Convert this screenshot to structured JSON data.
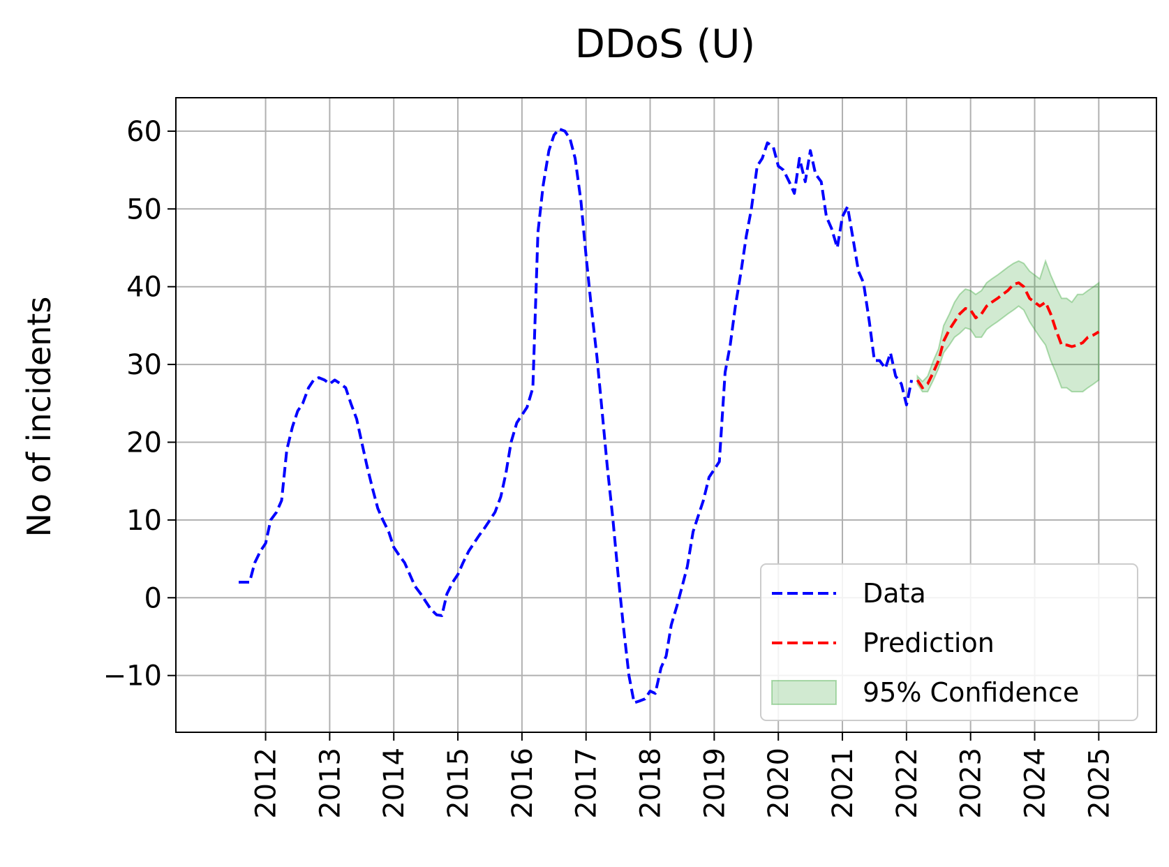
{
  "chart_data": {
    "type": "line",
    "title": "DDoS (U)",
    "xlabel": "",
    "ylabel": "No of incidents",
    "xlim": [
      2010.6,
      2025.9
    ],
    "ylim": [
      -17.3,
      64.3
    ],
    "x_ticks": [
      "2012",
      "2013",
      "2014",
      "2015",
      "2016",
      "2017",
      "2018",
      "2019",
      "2020",
      "2021",
      "2022",
      "2023",
      "2024",
      "2025"
    ],
    "y_ticks": [
      -10,
      0,
      10,
      20,
      30,
      40,
      50,
      60
    ],
    "y_tick_labels": [
      "−10",
      "0",
      "10",
      "20",
      "30",
      "40",
      "50",
      "60"
    ],
    "grid": true,
    "legend": {
      "placement": "lower-right",
      "entries": [
        {
          "label": "Data",
          "style": "dashed",
          "color": "#0000ff"
        },
        {
          "label": "Prediction",
          "style": "dashed",
          "color": "#ff0000"
        },
        {
          "label": "95% Confidence",
          "style": "band",
          "color": "#2ca02c"
        }
      ]
    },
    "series": [
      {
        "name": "Data",
        "color": "#0000ff",
        "style": "dashed",
        "points": [
          [
            2011.58,
            2
          ],
          [
            2011.75,
            2
          ],
          [
            2011.83,
            4.5
          ],
          [
            2011.92,
            6
          ],
          [
            2012.0,
            7
          ],
          [
            2012.08,
            10
          ],
          [
            2012.17,
            11
          ],
          [
            2012.25,
            12.5
          ],
          [
            2012.33,
            19
          ],
          [
            2012.42,
            22
          ],
          [
            2012.5,
            24
          ],
          [
            2012.58,
            25
          ],
          [
            2012.67,
            27
          ],
          [
            2012.75,
            28
          ],
          [
            2012.83,
            28.3
          ],
          [
            2012.92,
            28
          ],
          [
            2013.0,
            27.5
          ],
          [
            2013.08,
            28
          ],
          [
            2013.17,
            27.5
          ],
          [
            2013.25,
            27
          ],
          [
            2013.33,
            25
          ],
          [
            2013.42,
            23
          ],
          [
            2013.5,
            20
          ],
          [
            2013.58,
            17
          ],
          [
            2013.67,
            14
          ],
          [
            2013.75,
            11.5
          ],
          [
            2013.83,
            10
          ],
          [
            2013.92,
            8.5
          ],
          [
            2014.0,
            6.5
          ],
          [
            2014.08,
            5.5
          ],
          [
            2014.17,
            4.5
          ],
          [
            2014.25,
            3
          ],
          [
            2014.33,
            1.5
          ],
          [
            2014.42,
            0.5
          ],
          [
            2014.5,
            -0.5
          ],
          [
            2014.58,
            -1.5
          ],
          [
            2014.67,
            -2.2
          ],
          [
            2014.75,
            -2.3
          ],
          [
            2014.83,
            0.5
          ],
          [
            2014.92,
            2
          ],
          [
            2015.0,
            3
          ],
          [
            2015.08,
            4.5
          ],
          [
            2015.17,
            6
          ],
          [
            2015.25,
            7
          ],
          [
            2015.33,
            8
          ],
          [
            2015.42,
            9
          ],
          [
            2015.5,
            10
          ],
          [
            2015.58,
            11
          ],
          [
            2015.67,
            13
          ],
          [
            2015.75,
            16
          ],
          [
            2015.83,
            20
          ],
          [
            2015.92,
            22.5
          ],
          [
            2016.0,
            23.5
          ],
          [
            2016.08,
            24.5
          ],
          [
            2016.17,
            27
          ],
          [
            2016.25,
            47
          ],
          [
            2016.33,
            53
          ],
          [
            2016.42,
            57.5
          ],
          [
            2016.5,
            59.5
          ],
          [
            2016.58,
            60.3
          ],
          [
            2016.67,
            60
          ],
          [
            2016.75,
            59
          ],
          [
            2016.83,
            56.5
          ],
          [
            2016.92,
            51
          ],
          [
            2017.0,
            44
          ],
          [
            2017.08,
            37.5
          ],
          [
            2017.17,
            31
          ],
          [
            2017.25,
            24
          ],
          [
            2017.33,
            17
          ],
          [
            2017.42,
            10
          ],
          [
            2017.5,
            3
          ],
          [
            2017.58,
            -3.5
          ],
          [
            2017.67,
            -10
          ],
          [
            2017.75,
            -13.5
          ],
          [
            2017.83,
            -13.3
          ],
          [
            2017.92,
            -13
          ],
          [
            2018.0,
            -12
          ],
          [
            2018.08,
            -12.3
          ],
          [
            2018.17,
            -9
          ],
          [
            2018.25,
            -7.5
          ],
          [
            2018.33,
            -3.5
          ],
          [
            2018.42,
            -1
          ],
          [
            2018.5,
            1.5
          ],
          [
            2018.58,
            4
          ],
          [
            2018.67,
            8.5
          ],
          [
            2018.75,
            10.5
          ],
          [
            2018.83,
            12.5
          ],
          [
            2018.92,
            15.5
          ],
          [
            2019.0,
            16.5
          ],
          [
            2019.08,
            17.5
          ],
          [
            2019.17,
            29
          ],
          [
            2019.25,
            32.5
          ],
          [
            2019.33,
            37.5
          ],
          [
            2019.42,
            42
          ],
          [
            2019.5,
            46.5
          ],
          [
            2019.58,
            50
          ],
          [
            2019.67,
            55.5
          ],
          [
            2019.75,
            56.5
          ],
          [
            2019.83,
            58.5
          ],
          [
            2019.92,
            58
          ],
          [
            2020.0,
            55.5
          ],
          [
            2020.08,
            55
          ],
          [
            2020.17,
            53.5
          ],
          [
            2020.25,
            52
          ],
          [
            2020.33,
            56.5
          ],
          [
            2020.42,
            53.5
          ],
          [
            2020.5,
            57.5
          ],
          [
            2020.58,
            54.5
          ],
          [
            2020.67,
            53.5
          ],
          [
            2020.75,
            49
          ],
          [
            2020.83,
            47.5
          ],
          [
            2020.92,
            45
          ],
          [
            2021.0,
            49
          ],
          [
            2021.08,
            50.3
          ],
          [
            2021.17,
            46
          ],
          [
            2021.25,
            42
          ],
          [
            2021.33,
            40.5
          ],
          [
            2021.42,
            35.5
          ],
          [
            2021.5,
            30.5
          ],
          [
            2021.58,
            30.5
          ],
          [
            2021.67,
            29.5
          ],
          [
            2021.75,
            31.5
          ],
          [
            2021.83,
            28.5
          ],
          [
            2021.92,
            27.5
          ],
          [
            2022.0,
            24.8
          ],
          [
            2022.08,
            28
          ]
        ]
      },
      {
        "name": "Prediction",
        "color": "#ff0000",
        "style": "dashed",
        "points": [
          [
            2022.17,
            28
          ],
          [
            2022.25,
            27
          ],
          [
            2022.33,
            27.5
          ],
          [
            2022.42,
            29
          ],
          [
            2022.5,
            30.5
          ],
          [
            2022.58,
            33
          ],
          [
            2022.67,
            34.5
          ],
          [
            2022.75,
            35.5
          ],
          [
            2022.83,
            36.5
          ],
          [
            2022.92,
            37.2
          ],
          [
            2023.0,
            37
          ],
          [
            2023.08,
            36
          ],
          [
            2023.17,
            36.5
          ],
          [
            2023.25,
            37.5
          ],
          [
            2023.33,
            38
          ],
          [
            2023.42,
            38.5
          ],
          [
            2023.5,
            39
          ],
          [
            2023.58,
            39.5
          ],
          [
            2023.67,
            40.3
          ],
          [
            2023.75,
            40.5
          ],
          [
            2023.83,
            40
          ],
          [
            2023.92,
            38.5
          ],
          [
            2024.0,
            38
          ],
          [
            2024.08,
            37.5
          ],
          [
            2024.17,
            38
          ],
          [
            2024.25,
            36.5
          ],
          [
            2024.33,
            34.5
          ],
          [
            2024.42,
            32.5
          ],
          [
            2024.5,
            32.5
          ],
          [
            2024.58,
            32.3
          ],
          [
            2024.67,
            32.5
          ],
          [
            2024.75,
            32.8
          ],
          [
            2024.83,
            33.5
          ],
          [
            2024.92,
            33.8
          ],
          [
            2025.0,
            34.2
          ]
        ]
      }
    ],
    "confidence_band": {
      "name": "95% Confidence",
      "color": "#2ca02c",
      "x": [
        2022.17,
        2022.25,
        2022.33,
        2022.42,
        2022.5,
        2022.58,
        2022.67,
        2022.75,
        2022.83,
        2022.92,
        2023.0,
        2023.08,
        2023.17,
        2023.25,
        2023.33,
        2023.42,
        2023.5,
        2023.58,
        2023.67,
        2023.75,
        2023.83,
        2023.92,
        2024.0,
        2024.08,
        2024.17,
        2024.25,
        2024.33,
        2024.42,
        2024.5,
        2024.58,
        2024.67,
        2024.75,
        2024.83,
        2024.92,
        2025.0
      ],
      "upper": [
        28.5,
        27.8,
        28.5,
        30.5,
        32,
        35,
        36.5,
        38,
        39,
        39.7,
        39.5,
        39,
        39.5,
        40.5,
        41,
        41.5,
        42,
        42.5,
        43,
        43.3,
        43,
        42,
        41.5,
        41,
        43.3,
        41.5,
        40,
        38.5,
        38.5,
        38,
        39,
        39,
        39.5,
        40,
        40.5
      ],
      "lower": [
        27.5,
        26.5,
        26.5,
        28,
        29.5,
        31.5,
        32.5,
        33.5,
        34,
        34.7,
        34.5,
        33.5,
        33.5,
        34.5,
        35,
        35.5,
        36,
        36.5,
        37,
        37.5,
        37,
        35.5,
        34.5,
        33.5,
        32.5,
        30.5,
        29,
        27,
        27,
        26.5,
        26.5,
        26.5,
        27,
        27.5,
        28
      ]
    }
  }
}
